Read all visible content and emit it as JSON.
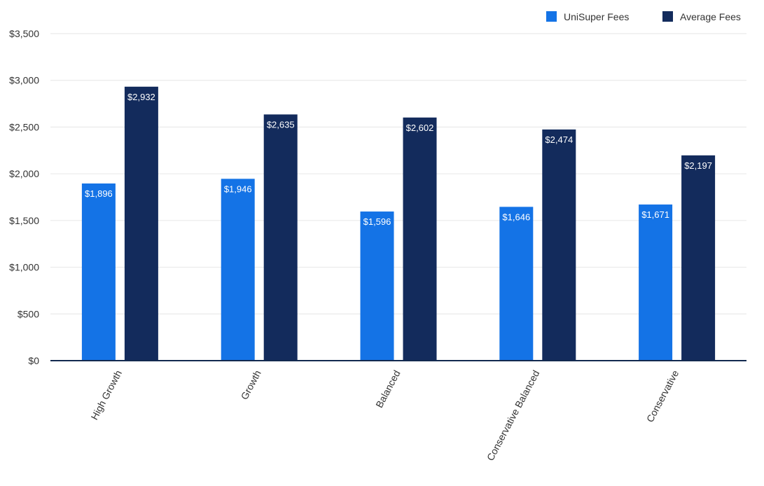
{
  "chart_data": {
    "type": "bar",
    "categories": [
      "High Growth",
      "Growth",
      "Balanced",
      "Conservative Balanced",
      "Conservative"
    ],
    "series": [
      {
        "name": "UniSuper Fees",
        "values": [
          1896,
          1946,
          1596,
          1646,
          1671
        ],
        "color": "#1473e6",
        "labels": [
          "$1,896",
          "$1,946",
          "$1,596",
          "$1,646",
          "$1,671"
        ]
      },
      {
        "name": "Average Fees",
        "values": [
          2932,
          2635,
          2602,
          2474,
          2197
        ],
        "color": "#132b5c",
        "labels": [
          "$2,932",
          "$2,635",
          "$2,602",
          "$2,474",
          "$2,197"
        ]
      }
    ],
    "yticks": [
      0,
      500,
      1000,
      1500,
      2000,
      2500,
      3000,
      3500
    ],
    "ytick_labels": [
      "$0",
      "$500",
      "$1,000",
      "$1,500",
      "$2,000",
      "$2,500",
      "$3,000",
      "$3,500"
    ],
    "ylim": [
      0,
      3500
    ],
    "title": "",
    "xlabel": "",
    "ylabel": "",
    "legend": "top-right",
    "grid": true
  }
}
